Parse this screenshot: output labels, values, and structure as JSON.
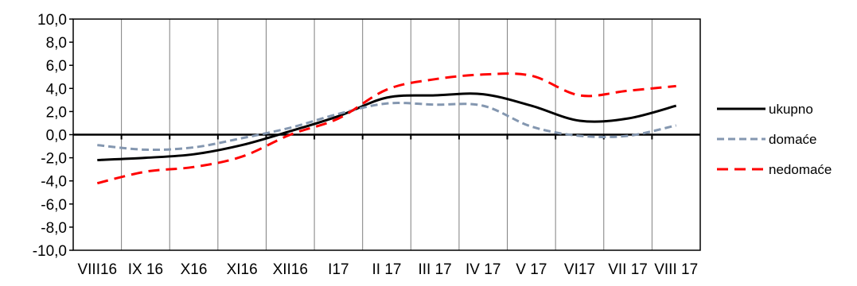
{
  "chart_data": {
    "type": "line",
    "categories": [
      "VIII16",
      "IX 16",
      "X16",
      "XI16",
      "XII16",
      "I17",
      "II 17",
      "III 17",
      "IV 17",
      "V 17",
      "VI17",
      "VII 17",
      "VIII 17"
    ],
    "y_tick_labels": [
      "10,0",
      "8,0",
      "6,0",
      "4,0",
      "2,0",
      "0,0",
      "-2,0",
      "-4,0",
      "-6,0",
      "-8,0",
      "-10,0"
    ],
    "ylim": [
      -10,
      10
    ],
    "ystep": 2,
    "grid": "vertical",
    "legend_position": "right",
    "series": [
      {
        "name": "ukupno",
        "color": "#000000",
        "dash": "solid",
        "values": [
          -2.2,
          -2.0,
          -1.7,
          -0.9,
          0.3,
          1.6,
          3.2,
          3.4,
          3.5,
          2.5,
          1.2,
          1.4,
          2.5
        ]
      },
      {
        "name": "domaće",
        "color": "#8497b0",
        "dash": "dashed",
        "values": [
          -0.9,
          -1.3,
          -1.1,
          -0.3,
          0.6,
          1.8,
          2.7,
          2.6,
          2.5,
          0.7,
          -0.1,
          -0.1,
          0.8
        ]
      },
      {
        "name": "nedomaće",
        "color": "#ff0000",
        "dash": "dashed",
        "values": [
          -4.2,
          -3.2,
          -2.8,
          -1.9,
          0.0,
          1.4,
          3.9,
          4.8,
          5.2,
          5.1,
          3.4,
          3.8,
          4.2
        ]
      }
    ]
  }
}
